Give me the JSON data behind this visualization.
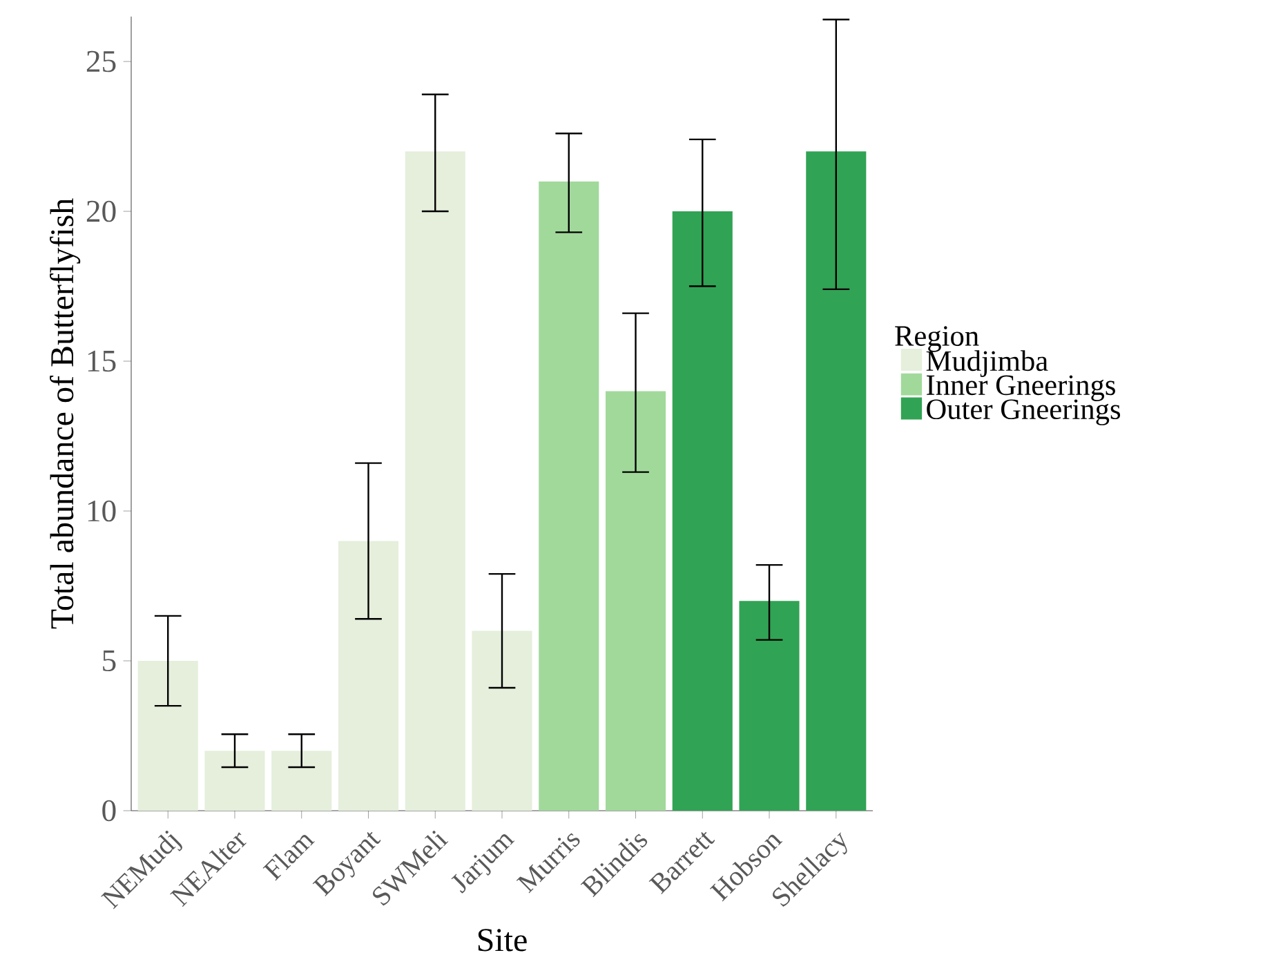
{
  "chart_data": {
    "type": "bar",
    "xlabel": "Site",
    "ylabel": "Total abundance of Butterflyfish",
    "legend_title": "Region",
    "legend": "right",
    "categories": [
      "NEMudj",
      "NEAlter",
      "Flam",
      "Boyant",
      "SWMeli",
      "Jarjum",
      "Murris",
      "Blindis",
      "Barrett",
      "Hobson",
      "Shellacy"
    ],
    "series": [
      {
        "name": "Mudjimba",
        "color": "#e5efdc",
        "values": [
          5,
          2,
          2,
          9,
          22,
          6,
          null,
          null,
          null,
          null,
          null
        ],
        "errors": [
          [
            3.5,
            6.5
          ],
          [
            1.45,
            2.55
          ],
          [
            1.45,
            2.55
          ],
          [
            6.4,
            11.6
          ],
          [
            20.0,
            23.9
          ],
          [
            4.1,
            7.9
          ],
          null,
          null,
          null,
          null,
          null
        ]
      },
      {
        "name": "Inner Gneerings",
        "color": "#a1d99b",
        "values": [
          null,
          null,
          null,
          null,
          null,
          null,
          21,
          14,
          null,
          null,
          null
        ],
        "errors": [
          null,
          null,
          null,
          null,
          null,
          null,
          [
            19.3,
            22.6
          ],
          [
            11.3,
            16.6
          ],
          null,
          null,
          null
        ]
      },
      {
        "name": "Outer Gneerings",
        "color": "#31a354",
        "values": [
          null,
          null,
          null,
          null,
          null,
          null,
          null,
          null,
          20,
          7,
          22
        ],
        "errors": [
          null,
          null,
          null,
          null,
          null,
          null,
          null,
          null,
          [
            17.5,
            22.4
          ],
          [
            5.7,
            8.2
          ],
          [
            17.4,
            26.4
          ]
        ]
      }
    ],
    "ylim": [
      0,
      26.5
    ],
    "yticks": [
      0,
      5,
      10,
      15,
      20,
      25
    ]
  }
}
